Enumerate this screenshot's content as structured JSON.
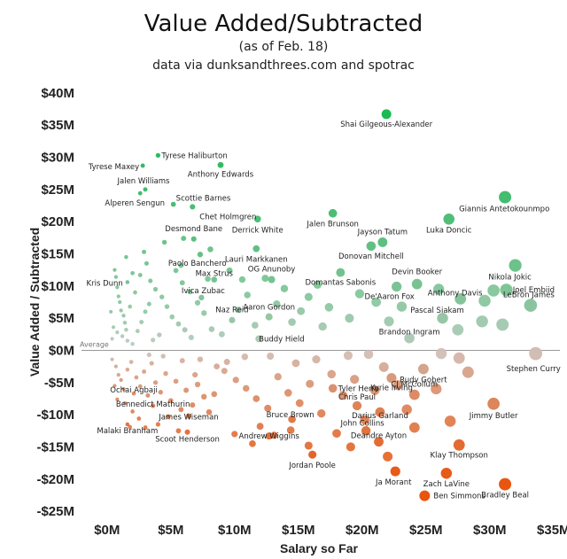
{
  "chart_data": {
    "type": "scatter",
    "title": "Value Added/Subtracted",
    "subtitle_1": "(as of Feb. 18)",
    "subtitle_2": "data via dunksandthrees.com and spotrac",
    "xlabel": "Salary so Far",
    "ylabel": "Value Added / Subtracted",
    "xlim": [
      -2,
      35.5
    ],
    "ylim": [
      -26.5,
      41.5
    ],
    "x_ticks": [
      {
        "value": 0,
        "label": "$0M"
      },
      {
        "value": 5,
        "label": "$5M"
      },
      {
        "value": 10,
        "label": "$10M"
      },
      {
        "value": 15,
        "label": "$15M"
      },
      {
        "value": 20,
        "label": "$20M"
      },
      {
        "value": 25,
        "label": "$25M"
      },
      {
        "value": 30,
        "label": "$30M"
      },
      {
        "value": 35,
        "label": "$35M"
      }
    ],
    "y_ticks": [
      {
        "value": 40,
        "label": "$40M"
      },
      {
        "value": 35,
        "label": "$35M"
      },
      {
        "value": 30,
        "label": "$30M"
      },
      {
        "value": 25,
        "label": "$25M"
      },
      {
        "value": 20,
        "label": "$20M"
      },
      {
        "value": 15,
        "label": "$15M"
      },
      {
        "value": 10,
        "label": "$10M"
      },
      {
        "value": 5,
        "label": "$5M"
      },
      {
        "value": 0,
        "label": "$0M"
      },
      {
        "value": -5,
        "label": "-$5M"
      },
      {
        "value": -10,
        "label": "-$10M"
      },
      {
        "value": -15,
        "label": "-$15M"
      },
      {
        "value": -20,
        "label": "-$20M"
      },
      {
        "value": -25,
        "label": "-$25M"
      }
    ],
    "reference_line": {
      "label": "Average",
      "value": 0
    },
    "color_scale": {
      "positive": "#1db954",
      "neutral": "#cccccc",
      "negative": "#e8550f"
    },
    "labeled_points": [
      {
        "name": "Shai Gilgeous-Alexander",
        "x": 21.9,
        "y": 36.7
      },
      {
        "name": "Tyrese Maxey",
        "x": 2.8,
        "y": 28.7
      },
      {
        "name": "Tyrese Haliburton",
        "x": 4.0,
        "y": 30.3
      },
      {
        "name": "Anthony Edwards",
        "x": 8.9,
        "y": 28.8
      },
      {
        "name": "Jalen Williams",
        "x": 3.0,
        "y": 25.0
      },
      {
        "name": "Scottie Barnes",
        "x": 5.2,
        "y": 22.7
      },
      {
        "name": "Alperen Sengun",
        "x": 2.6,
        "y": 24.4
      },
      {
        "name": "Chet Holmgren",
        "x": 6.7,
        "y": 22.3
      },
      {
        "name": "Desmond Bane",
        "x": 6.8,
        "y": 17.3
      },
      {
        "name": "Derrick White",
        "x": 11.8,
        "y": 20.4
      },
      {
        "name": "Jalen Brunson",
        "x": 17.7,
        "y": 21.3
      },
      {
        "name": "Giannis Antetokounmpo",
        "x": 31.2,
        "y": 23.8
      },
      {
        "name": "Luka Doncic",
        "x": 26.8,
        "y": 20.4
      },
      {
        "name": "Jayson Tatum",
        "x": 21.6,
        "y": 16.8
      },
      {
        "name": "Donovan Mitchell",
        "x": 20.7,
        "y": 16.2
      },
      {
        "name": "Paolo Banchero",
        "x": 7.3,
        "y": 14.9
      },
      {
        "name": "Lauri Markkanen",
        "x": 11.7,
        "y": 15.8
      },
      {
        "name": "OG Anunoby",
        "x": 12.9,
        "y": 11.0
      },
      {
        "name": "Domantas Sabonis",
        "x": 18.3,
        "y": 12.1
      },
      {
        "name": "Devin Booker",
        "x": 24.3,
        "y": 10.3
      },
      {
        "name": "Nikola Jokic",
        "x": 32.0,
        "y": 13.2
      },
      {
        "name": "Max Strus",
        "x": 8.4,
        "y": 11.0
      },
      {
        "name": "Kris Dunn",
        "x": 1.6,
        "y": 10.6
      },
      {
        "name": "Joel Embiid",
        "x": 31.3,
        "y": 9.4
      },
      {
        "name": "De'Aaron Fox",
        "x": 22.7,
        "y": 9.9
      },
      {
        "name": "Anthony Davis",
        "x": 27.7,
        "y": 8.0
      },
      {
        "name": "Ivica Zubac",
        "x": 7.4,
        "y": 8.2
      },
      {
        "name": "LeBron James",
        "x": 33.2,
        "y": 7.0
      },
      {
        "name": "Pascal Siakam",
        "x": 26.3,
        "y": 5.0
      },
      {
        "name": "Aaron Gordon",
        "x": 12.7,
        "y": 5.2
      },
      {
        "name": "Naz Reid",
        "x": 9.8,
        "y": 4.7
      },
      {
        "name": "Buddy Hield",
        "x": 11.9,
        "y": 1.8
      },
      {
        "name": "Brandon Ingram",
        "x": 23.7,
        "y": 1.9
      },
      {
        "name": "Stephen Curry",
        "x": 33.6,
        "y": -0.5
      },
      {
        "name": "Rudy Gobert",
        "x": 24.8,
        "y": -2.9
      },
      {
        "name": "Kyrie Irving",
        "x": 22.3,
        "y": -4.3
      },
      {
        "name": "Tyler Herro",
        "x": 17.7,
        "y": -5.9
      },
      {
        "name": "CJ McCollum",
        "x": 24.1,
        "y": -6.9
      },
      {
        "name": "Ochai Agbaji",
        "x": 2.1,
        "y": -6.7
      },
      {
        "name": "Bennedict Mathurin",
        "x": 3.6,
        "y": -8.6
      },
      {
        "name": "Chris Paul",
        "x": 19.6,
        "y": -8.6
      },
      {
        "name": "Darius Garland",
        "x": 21.4,
        "y": -9.6
      },
      {
        "name": "Jimmy Butler",
        "x": 30.3,
        "y": -8.3
      },
      {
        "name": "James Wiseman",
        "x": 6.4,
        "y": -10.2
      },
      {
        "name": "Bruce Brown",
        "x": 14.5,
        "y": -10.7
      },
      {
        "name": "Malaki Branham",
        "x": 1.6,
        "y": -11.5
      },
      {
        "name": "John Collins",
        "x": 20.3,
        "y": -12.5
      },
      {
        "name": "Scoot Henderson",
        "x": 6.3,
        "y": -12.7
      },
      {
        "name": "Andrew Wiggins",
        "x": 12.7,
        "y": -13.3
      },
      {
        "name": "Deandre Ayton",
        "x": 21.3,
        "y": -14.2
      },
      {
        "name": "Klay Thompson",
        "x": 27.6,
        "y": -14.7
      },
      {
        "name": "Jordan Poole",
        "x": 16.1,
        "y": -16.2
      },
      {
        "name": "Ja Morant",
        "x": 22.6,
        "y": -18.8
      },
      {
        "name": "Zach LaVine",
        "x": 26.6,
        "y": -19.1
      },
      {
        "name": "Bradley Beal",
        "x": 31.2,
        "y": -20.8
      },
      {
        "name": "Ben Simmons",
        "x": 24.9,
        "y": -22.6
      }
    ],
    "other_points": [
      [
        0.6,
        12.5
      ],
      [
        0.7,
        11.4
      ],
      [
        0.8,
        9.8
      ],
      [
        0.9,
        8.4
      ],
      [
        1.0,
        7.5
      ],
      [
        1.1,
        6.2
      ],
      [
        1.3,
        5.4
      ],
      [
        1.4,
        4.3
      ],
      [
        0.5,
        3.6
      ],
      [
        0.8,
        2.8
      ],
      [
        1.2,
        2.2
      ],
      [
        1.6,
        1.5
      ],
      [
        2.0,
        1.0
      ],
      [
        2.4,
        3.0
      ],
      [
        2.7,
        4.4
      ],
      [
        3.0,
        6.0
      ],
      [
        3.3,
        7.2
      ],
      [
        2.2,
        9.0
      ],
      [
        2.6,
        11.7
      ],
      [
        3.4,
        10.8
      ],
      [
        3.8,
        9.5
      ],
      [
        4.3,
        8.3
      ],
      [
        4.7,
        6.8
      ],
      [
        5.1,
        5.2
      ],
      [
        5.6,
        4.1
      ],
      [
        6.1,
        3.2
      ],
      [
        6.6,
        2.0
      ],
      [
        4.1,
        2.4
      ],
      [
        3.6,
        1.6
      ],
      [
        5.4,
        12.4
      ],
      [
        5.9,
        10.5
      ],
      [
        6.5,
        9.1
      ],
      [
        7.1,
        7.4
      ],
      [
        7.6,
        5.8
      ],
      [
        8.2,
        3.3
      ],
      [
        9.0,
        2.5
      ],
      [
        10.3,
        6.3
      ],
      [
        11.0,
        8.6
      ],
      [
        11.6,
        3.9
      ],
      [
        13.3,
        7.2
      ],
      [
        13.9,
        9.6
      ],
      [
        14.5,
        4.4
      ],
      [
        15.2,
        6.1
      ],
      [
        15.8,
        8.3
      ],
      [
        16.9,
        3.7
      ],
      [
        17.4,
        6.7
      ],
      [
        19.0,
        5.0
      ],
      [
        19.8,
        8.8
      ],
      [
        21.1,
        7.5
      ],
      [
        22.1,
        4.5
      ],
      [
        23.1,
        6.8
      ],
      [
        26.0,
        9.5
      ],
      [
        27.5,
        3.2
      ],
      [
        29.4,
        4.5
      ],
      [
        29.6,
        7.7
      ],
      [
        31.0,
        4.0
      ],
      [
        30.3,
        9.3
      ],
      [
        7.9,
        11.1
      ],
      [
        8.1,
        15.7
      ],
      [
        5.8,
        13.2
      ],
      [
        3.1,
        13.5
      ],
      [
        1.5,
        14.5
      ],
      [
        2.0,
        12.0
      ],
      [
        1.8,
        6.8
      ],
      [
        0.3,
        6.0
      ],
      [
        0.4,
        1.8
      ],
      [
        1.5,
        3.2
      ],
      [
        10.6,
        11.0
      ],
      [
        12.4,
        11.2
      ],
      [
        9.6,
        12.4
      ],
      [
        16.5,
        10.2
      ],
      [
        2.9,
        15.3
      ],
      [
        4.5,
        16.8
      ],
      [
        6.0,
        17.4
      ],
      [
        0.4,
        -1.4
      ],
      [
        0.7,
        -2.5
      ],
      [
        0.9,
        -3.8
      ],
      [
        1.1,
        -4.6
      ],
      [
        0.6,
        -5.5
      ],
      [
        1.3,
        -6.0
      ],
      [
        1.6,
        -3.0
      ],
      [
        1.9,
        -1.8
      ],
      [
        2.3,
        -4.2
      ],
      [
        2.6,
        -5.6
      ],
      [
        2.9,
        -3.3
      ],
      [
        3.2,
        -7.0
      ],
      [
        3.5,
        -2.0
      ],
      [
        3.8,
        -5.0
      ],
      [
        4.2,
        -6.5
      ],
      [
        4.6,
        -3.6
      ],
      [
        5.0,
        -7.8
      ],
      [
        5.4,
        -4.8
      ],
      [
        5.8,
        -9.2
      ],
      [
        6.2,
        -6.2
      ],
      [
        6.7,
        -8.5
      ],
      [
        7.1,
        -5.3
      ],
      [
        7.6,
        -7.2
      ],
      [
        8.0,
        -9.6
      ],
      [
        8.4,
        -6.8
      ],
      [
        1.4,
        -8.2
      ],
      [
        2.0,
        -9.5
      ],
      [
        2.5,
        -10.6
      ],
      [
        3.0,
        -12.0
      ],
      [
        4.0,
        -11.5
      ],
      [
        4.8,
        -10.3
      ],
      [
        5.6,
        -12.5
      ],
      [
        0.8,
        -7.6
      ],
      [
        9.2,
        -3.2
      ],
      [
        10.1,
        -4.6
      ],
      [
        10.9,
        -5.9
      ],
      [
        11.7,
        -7.5
      ],
      [
        12.6,
        -9.0
      ],
      [
        13.4,
        -4.1
      ],
      [
        14.2,
        -6.6
      ],
      [
        15.1,
        -8.2
      ],
      [
        15.9,
        -5.2
      ],
      [
        16.8,
        -9.8
      ],
      [
        17.6,
        -3.7
      ],
      [
        18.5,
        -7.0
      ],
      [
        19.4,
        -4.5
      ],
      [
        20.2,
        -10.8
      ],
      [
        21.0,
        -6.2
      ],
      [
        22.8,
        -5.4
      ],
      [
        23.5,
        -9.2
      ],
      [
        25.8,
        -6.0
      ],
      [
        26.9,
        -11.0
      ],
      [
        28.3,
        -3.4
      ],
      [
        12.0,
        -11.8
      ],
      [
        13.1,
        -13.2
      ],
      [
        14.4,
        -12.4
      ],
      [
        15.8,
        -14.8
      ],
      [
        18.0,
        -12.9
      ],
      [
        19.1,
        -15.0
      ],
      [
        22.0,
        -16.5
      ],
      [
        10.0,
        -13.0
      ],
      [
        11.4,
        -14.5
      ],
      [
        9.4,
        -1.8
      ],
      [
        8.6,
        -2.5
      ],
      [
        7.3,
        -1.4
      ],
      [
        5.9,
        -1.6
      ],
      [
        4.4,
        -0.9
      ],
      [
        3.3,
        -0.7
      ],
      [
        14.8,
        -2.0
      ],
      [
        16.4,
        -1.4
      ],
      [
        18.9,
        -0.8
      ],
      [
        20.5,
        -0.6
      ],
      [
        21.7,
        -2.6
      ],
      [
        26.2,
        -0.5
      ],
      [
        27.6,
        -1.2
      ],
      [
        12.8,
        -0.9
      ],
      [
        10.8,
        -1.0
      ],
      [
        1.8,
        -11.9
      ],
      [
        6.9,
        -3.8
      ],
      [
        24.1,
        -12.0
      ]
    ]
  }
}
